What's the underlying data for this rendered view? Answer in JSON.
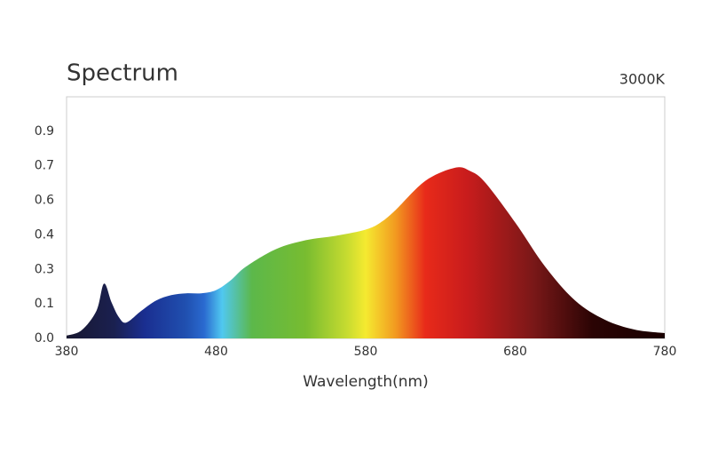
{
  "chart_data": {
    "type": "area",
    "title": "Spectrum",
    "subtitle": "3000K",
    "x_label": "Wavelength(nm)",
    "x": [
      380,
      390,
      400,
      405,
      410,
      415,
      420,
      430,
      440,
      450,
      460,
      470,
      480,
      490,
      500,
      520,
      540,
      560,
      580,
      590,
      600,
      620,
      640,
      650,
      660,
      680,
      700,
      720,
      740,
      760,
      780
    ],
    "values": [
      0.012,
      0.035,
      0.12,
      0.238,
      0.158,
      0.092,
      0.069,
      0.12,
      0.165,
      0.188,
      0.196,
      0.196,
      0.21,
      0.254,
      0.312,
      0.388,
      0.427,
      0.446,
      0.473,
      0.504,
      0.558,
      0.685,
      0.742,
      0.727,
      0.677,
      0.504,
      0.312,
      0.165,
      0.081,
      0.038,
      0.023
    ],
    "xlim": [
      380,
      780
    ],
    "xticks": [
      380,
      480,
      580,
      680,
      780
    ],
    "ylim": [
      0,
      1.05
    ],
    "yticks": [
      {
        "value": 0,
        "label": "0.0"
      },
      {
        "value": 0.15,
        "label": "0.1"
      },
      {
        "value": 0.3,
        "label": "0.3"
      },
      {
        "value": 0.45,
        "label": "0.4"
      },
      {
        "value": 0.6,
        "label": "0.6"
      },
      {
        "value": 0.75,
        "label": "0.7"
      },
      {
        "value": 0.9,
        "label": "0.9"
      }
    ]
  }
}
